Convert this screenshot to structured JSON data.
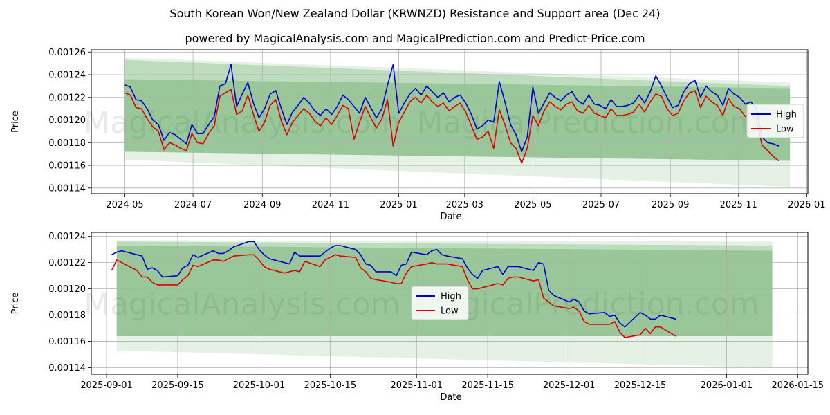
{
  "chart_title": "South Korean Won/New Zealand Dollar (KRWNZD) Resistance and Support area (Dec 24)",
  "chart_subtitle": "powered by MagicalAnalysis.com and MagicalPrediction.com and Predict-Price.com",
  "watermarks": [
    "MagicalAnalysis.com",
    "MagicalPrediction.com"
  ],
  "colors": {
    "high": "#0000cc",
    "low": "#dd0000",
    "band": "#2e8b2e",
    "grid": "#b0b0b0"
  },
  "chart_data": [
    {
      "type": "line",
      "name": "top",
      "xlabel": "Date",
      "ylabel": "Price",
      "xticks": [
        "2024-05",
        "2024-07",
        "2024-09",
        "2024-11",
        "2025-01",
        "2025-03",
        "2025-05",
        "2025-07",
        "2025-09",
        "2025-11",
        "2026-01"
      ],
      "yticks": [
        "0.00114",
        "0.00116",
        "0.00118",
        "0.00120",
        "0.00122",
        "0.00124",
        "0.00126"
      ],
      "ylim": [
        0.001135,
        0.001262
      ],
      "xlim_days": [
        -30,
        611
      ],
      "legend": [
        "High",
        "Low"
      ],
      "legend_position": "center-right",
      "bands": [
        {
          "d0": 0,
          "d1": 595,
          "top0": 0.001255,
          "top1": 0.001233,
          "bot0": 0.001165,
          "bot1": 0.001141,
          "alpha": 0.12
        },
        {
          "d0": 0,
          "d1": 595,
          "top0": 0.001253,
          "top1": 0.00123,
          "bot0": 0.001172,
          "bot1": 0.001164,
          "alpha": 0.22
        },
        {
          "d0": 0,
          "d1": 595,
          "top0": 0.001236,
          "top1": 0.001228,
          "bot0": 0.001172,
          "bot1": 0.001164,
          "alpha": 0.25
        }
      ],
      "series": [
        {
          "name": "High",
          "x": [
            0,
            5,
            10,
            15,
            20,
            25,
            30,
            35,
            40,
            45,
            50,
            55,
            60,
            65,
            70,
            75,
            80,
            85,
            90,
            95,
            100,
            105,
            110,
            115,
            120,
            125,
            130,
            135,
            140,
            145,
            150,
            155,
            160,
            165,
            170,
            175,
            180,
            185,
            190,
            195,
            200,
            205,
            210,
            215,
            220,
            225,
            230,
            235,
            240,
            245,
            250,
            255,
            260,
            265,
            270,
            275,
            280,
            285,
            290,
            295,
            300,
            305,
            310,
            315,
            320,
            325,
            330,
            335,
            340,
            345,
            350,
            355,
            360,
            365,
            370,
            375,
            380,
            385,
            390,
            395,
            400,
            405,
            410,
            415,
            420,
            425,
            430,
            435,
            440,
            445,
            450,
            455,
            460,
            465,
            470,
            475,
            480,
            485,
            490,
            495,
            500,
            505,
            510,
            515,
            520,
            525,
            530,
            535,
            540,
            545,
            550,
            555,
            560,
            565,
            570,
            575,
            580,
            585
          ],
          "values": [
            0.001231,
            0.001229,
            0.001218,
            0.001217,
            0.00121,
            0.0012,
            0.001196,
            0.001182,
            0.001189,
            0.001187,
            0.001183,
            0.001179,
            0.001196,
            0.001188,
            0.001188,
            0.001196,
            0.001203,
            0.00123,
            0.001232,
            0.001249,
            0.001212,
            0.001223,
            0.001233,
            0.001215,
            0.001202,
            0.00121,
            0.001223,
            0.001226,
            0.00121,
            0.001196,
            0.001207,
            0.001213,
            0.00122,
            0.001215,
            0.001208,
            0.001204,
            0.00121,
            0.001205,
            0.001212,
            0.001222,
            0.001218,
            0.001212,
            0.001206,
            0.00122,
            0.001211,
            0.001202,
            0.00121,
            0.001231,
            0.001249,
            0.001206,
            0.001215,
            0.001223,
            0.001228,
            0.001222,
            0.00123,
            0.001225,
            0.00122,
            0.001224,
            0.001216,
            0.00122,
            0.001222,
            0.001215,
            0.001205,
            0.001192,
            0.001195,
            0.0012,
            0.001198,
            0.001234,
            0.001216,
            0.001196,
            0.001187,
            0.001172,
            0.001185,
            0.001229,
            0.001206,
            0.001215,
            0.001224,
            0.00122,
            0.001217,
            0.001222,
            0.001225,
            0.001217,
            0.001214,
            0.001222,
            0.001214,
            0.001213,
            0.00121,
            0.001218,
            0.001212,
            0.001212,
            0.001213,
            0.001215,
            0.001222,
            0.001215,
            0.001225,
            0.001239,
            0.00123,
            0.00122,
            0.001211,
            0.001213,
            0.001225,
            0.001232,
            0.001235,
            0.00122,
            0.00123,
            0.001225,
            0.001222,
            0.001213,
            0.001228,
            0.001223,
            0.00122,
            0.001214,
            0.001216,
            0.00121,
            0.001185,
            0.00118,
            0.001179,
            0.001177
          ]
        },
        {
          "name": "Low",
          "x": [
            0,
            5,
            10,
            15,
            20,
            25,
            30,
            35,
            40,
            45,
            50,
            55,
            60,
            65,
            70,
            75,
            80,
            85,
            90,
            95,
            100,
            105,
            110,
            115,
            120,
            125,
            130,
            135,
            140,
            145,
            150,
            155,
            160,
            165,
            170,
            175,
            180,
            185,
            190,
            195,
            200,
            205,
            210,
            215,
            220,
            225,
            230,
            235,
            240,
            245,
            250,
            255,
            260,
            265,
            270,
            275,
            280,
            285,
            290,
            295,
            300,
            305,
            310,
            315,
            320,
            325,
            330,
            335,
            340,
            345,
            350,
            355,
            360,
            365,
            370,
            375,
            380,
            385,
            390,
            395,
            400,
            405,
            410,
            415,
            420,
            425,
            430,
            435,
            440,
            445,
            450,
            455,
            460,
            465,
            470,
            475,
            480,
            485,
            490,
            495,
            500,
            505,
            510,
            515,
            520,
            525,
            530,
            535,
            540,
            545,
            550,
            555,
            560,
            565,
            570,
            575,
            580,
            585
          ],
          "values": [
            0.001224,
            0.001222,
            0.001211,
            0.00121,
            0.001201,
            0.001194,
            0.00119,
            0.001174,
            0.00118,
            0.001178,
            0.001175,
            0.001173,
            0.001188,
            0.00118,
            0.001179,
            0.001188,
            0.001195,
            0.001221,
            0.001224,
            0.001227,
            0.001205,
            0.001208,
            0.001222,
            0.001205,
            0.00119,
            0.001198,
            0.001213,
            0.001218,
            0.001199,
            0.001187,
            0.001198,
            0.001204,
            0.00121,
            0.001206,
            0.001199,
            0.001195,
            0.001202,
            0.001196,
            0.001204,
            0.001213,
            0.00121,
            0.001183,
            0.001198,
            0.001212,
            0.001202,
            0.001193,
            0.001201,
            0.001218,
            0.001177,
            0.001198,
            0.001207,
            0.001216,
            0.00122,
            0.001215,
            0.001222,
            0.001216,
            0.001212,
            0.001215,
            0.001208,
            0.001212,
            0.001215,
            0.001207,
            0.001195,
            0.001183,
            0.001185,
            0.00119,
            0.001175,
            0.001209,
            0.001196,
            0.00118,
            0.001175,
            0.001162,
            0.001175,
            0.001204,
            0.001195,
            0.001208,
            0.001216,
            0.001212,
            0.001209,
            0.001214,
            0.001216,
            0.001208,
            0.001206,
            0.001213,
            0.001206,
            0.001204,
            0.001202,
            0.00121,
            0.001204,
            0.001204,
            0.001205,
            0.001207,
            0.001214,
            0.001207,
            0.001216,
            0.001223,
            0.001221,
            0.00121,
            0.001204,
            0.001206,
            0.001217,
            0.001224,
            0.001226,
            0.001211,
            0.001221,
            0.001216,
            0.001213,
            0.001204,
            0.001219,
            0.001212,
            0.00121,
            0.001203,
            0.001206,
            0.0012,
            0.001178,
            0.001173,
            0.001168,
            0.001164
          ]
        }
      ]
    },
    {
      "type": "line",
      "name": "bottom",
      "xlabel": "Date",
      "ylabel": "Price",
      "xticks": [
        "2025-09-01",
        "2025-09-15",
        "2025-10-01",
        "2025-10-15",
        "2025-11-01",
        "2025-11-15",
        "2025-12-01",
        "2025-12-15",
        "2026-01-01",
        "2026-01-15"
      ],
      "yticks": [
        "0.00114",
        "0.00116",
        "0.00118",
        "0.00120",
        "0.00122",
        "0.00124"
      ],
      "ylim": [
        0.001135,
        0.001243
      ],
      "xlim_days": [
        -3,
        138
      ],
      "legend": [
        "High",
        "Low"
      ],
      "legend_position": "center",
      "bands": [
        {
          "d0": 2,
          "d1": 131,
          "top0": 0.001237,
          "top1": 0.001236,
          "bot0": 0.001153,
          "bot1": 0.00114,
          "alpha": 0.12
        },
        {
          "d0": 2,
          "d1": 131,
          "top0": 0.001236,
          "top1": 0.001233,
          "bot0": 0.001164,
          "bot1": 0.001164,
          "alpha": 0.22
        },
        {
          "d0": 2,
          "d1": 131,
          "top0": 0.001233,
          "top1": 0.001229,
          "bot0": 0.001164,
          "bot1": 0.001164,
          "alpha": 0.25
        }
      ],
      "series": [
        {
          "name": "High",
          "x": [
            1,
            2,
            3,
            6,
            7,
            8,
            9,
            10,
            11,
            14,
            15,
            16,
            17,
            18,
            21,
            22,
            23,
            24,
            25,
            28,
            29,
            30,
            31,
            32,
            35,
            36,
            37,
            38,
            39,
            42,
            43,
            44,
            45,
            46,
            49,
            50,
            51,
            52,
            53,
            56,
            57,
            58,
            59,
            60,
            63,
            64,
            65,
            66,
            67,
            70,
            71,
            72,
            73,
            74,
            77,
            78,
            79,
            80,
            81,
            84,
            85,
            86,
            87,
            88,
            91,
            92,
            93,
            94,
            95,
            98,
            99,
            100,
            101,
            102,
            105,
            106,
            107,
            108,
            109,
            112
          ],
          "values": [
            0.001226,
            0.001228,
            0.001229,
            0.001226,
            0.001225,
            0.001215,
            0.001216,
            0.001214,
            0.001209,
            0.00121,
            0.001216,
            0.001218,
            0.001226,
            0.001224,
            0.001229,
            0.001227,
            0.001227,
            0.001229,
            0.001232,
            0.001236,
            0.001236,
            0.00123,
            0.001226,
            0.001223,
            0.00122,
            0.001219,
            0.001228,
            0.001225,
            0.001225,
            0.001225,
            0.001228,
            0.001231,
            0.001233,
            0.001233,
            0.00123,
            0.001226,
            0.001219,
            0.001218,
            0.001213,
            0.001213,
            0.00121,
            0.001218,
            0.001219,
            0.001228,
            0.001226,
            0.001229,
            0.00123,
            0.001226,
            0.001225,
            0.001223,
            0.001216,
            0.001211,
            0.001208,
            0.001214,
            0.001217,
            0.001211,
            0.001217,
            0.001217,
            0.001217,
            0.001214,
            0.00122,
            0.001219,
            0.001199,
            0.001195,
            0.00119,
            0.001192,
            0.00119,
            0.001183,
            0.001181,
            0.001182,
            0.001179,
            0.00118,
            0.001174,
            0.001171,
            0.001182,
            0.00118,
            0.001177,
            0.001177,
            0.00118,
            0.001177
          ]
        },
        {
          "name": "Low",
          "x": [
            1,
            2,
            3,
            6,
            7,
            8,
            9,
            10,
            11,
            14,
            15,
            16,
            17,
            18,
            21,
            22,
            23,
            24,
            25,
            28,
            29,
            30,
            31,
            32,
            35,
            36,
            37,
            38,
            39,
            42,
            43,
            44,
            45,
            46,
            49,
            50,
            51,
            52,
            53,
            56,
            57,
            58,
            59,
            60,
            63,
            64,
            65,
            66,
            67,
            70,
            71,
            72,
            73,
            74,
            77,
            78,
            79,
            80,
            81,
            84,
            85,
            86,
            87,
            88,
            91,
            92,
            93,
            94,
            95,
            98,
            99,
            100,
            101,
            102,
            105,
            106,
            107,
            108,
            109,
            112
          ],
          "values": [
            0.001214,
            0.001222,
            0.00122,
            0.001214,
            0.001209,
            0.001209,
            0.001205,
            0.001203,
            0.001203,
            0.001203,
            0.001207,
            0.00121,
            0.001218,
            0.001217,
            0.001222,
            0.001222,
            0.001221,
            0.001223,
            0.001225,
            0.001226,
            0.001226,
            0.001222,
            0.001217,
            0.001215,
            0.001212,
            0.001213,
            0.001214,
            0.001213,
            0.001221,
            0.001217,
            0.001222,
            0.001224,
            0.001226,
            0.001225,
            0.001224,
            0.001216,
            0.001213,
            0.001208,
            0.001207,
            0.001205,
            0.001204,
            0.001204,
            0.001212,
            0.001217,
            0.001219,
            0.00122,
            0.001219,
            0.001219,
            0.001219,
            0.001217,
            0.001207,
            0.0012,
            0.0012,
            0.001201,
            0.001204,
            0.001203,
            0.001208,
            0.001209,
            0.001209,
            0.001206,
            0.001207,
            0.001193,
            0.00119,
            0.001187,
            0.001185,
            0.001186,
            0.001183,
            0.001175,
            0.001173,
            0.001173,
            0.001173,
            0.001175,
            0.001167,
            0.001163,
            0.001165,
            0.00117,
            0.001166,
            0.001171,
            0.001171,
            0.001164
          ]
        }
      ]
    }
  ]
}
